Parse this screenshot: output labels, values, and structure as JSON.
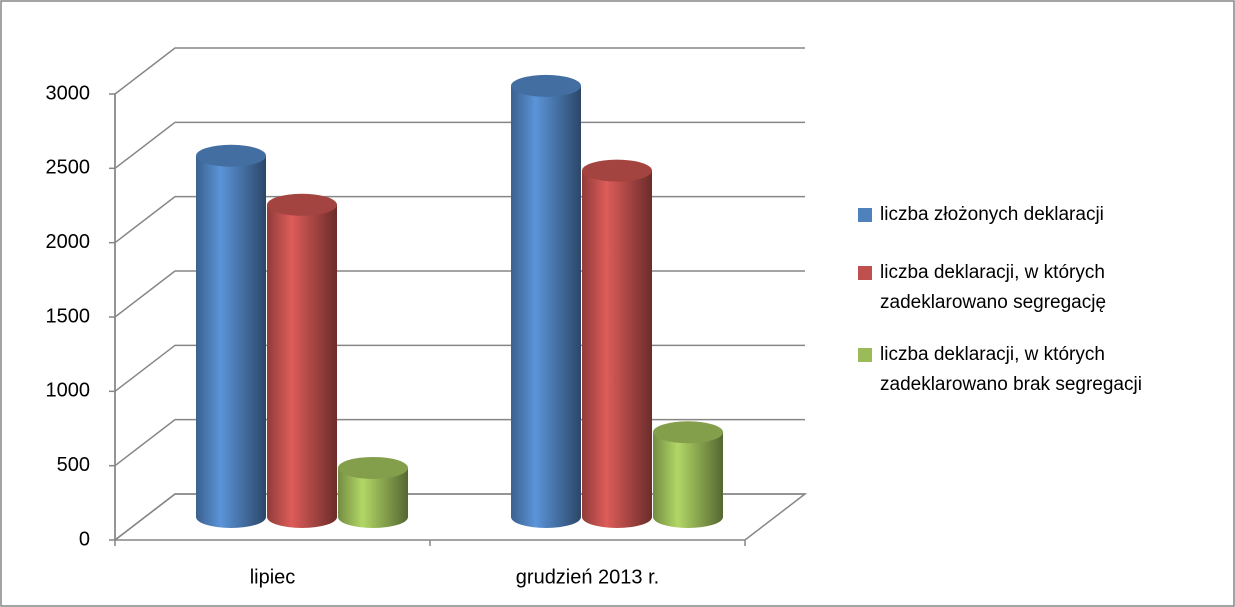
{
  "chart_data": {
    "type": "bar3d",
    "categories": [
      "lipiec",
      "grudzień 2013 r."
    ],
    "series": [
      {
        "name": "liczba złożonych deklaracji",
        "color": "#4f81bd",
        "values": [
          2430,
          2900
        ]
      },
      {
        "name": "liczba deklaracji, w których zadeklarowano segregację",
        "color": "#c0504d",
        "values": [
          2100,
          2330
        ]
      },
      {
        "name": "liczba deklaracji, w których zadeklarowano brak segregacji",
        "color": "#9bbb59",
        "values": [
          330,
          570
        ]
      }
    ],
    "ylim": [
      0,
      3000
    ],
    "yticks": [
      0,
      500,
      1000,
      1500,
      2000,
      2500,
      3000
    ],
    "grid": true,
    "legend": "right"
  }
}
